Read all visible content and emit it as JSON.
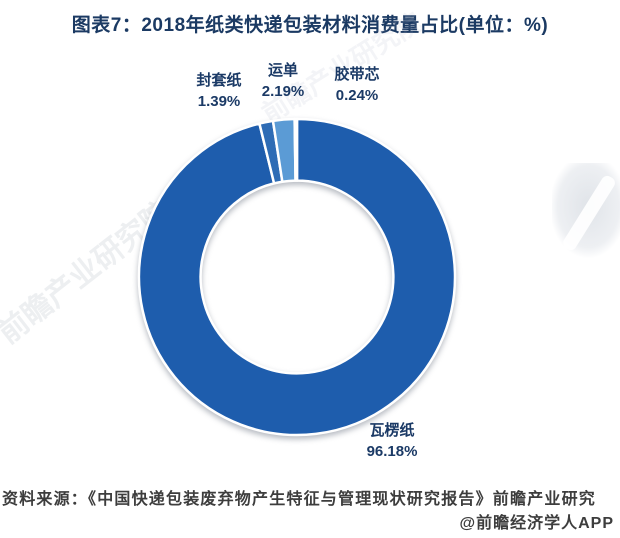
{
  "title": "图表7：2018年纸类快递包装材料消费量占比(单位：%)",
  "chart_data": {
    "type": "pie",
    "subtype": "donut",
    "title": "2018年纸类快递包装材料消费量占比",
    "unit": "%",
    "labels": [
      "瓦楞纸",
      "封套纸",
      "运单",
      "胶带芯"
    ],
    "values": [
      96.18,
      1.39,
      2.19,
      0.24
    ],
    "value_labels": [
      "96.18%",
      "1.39%",
      "2.19%",
      "0.24%"
    ],
    "colors": [
      "#1e5dad",
      "#2e6cb5",
      "#5b9bd5",
      "#8ab4de"
    ],
    "start_angle_deg": 0,
    "direction": "clockwise",
    "donut_hole_ratio": 0.61,
    "slice_gap_stroke": "#ffffff",
    "legend": "none",
    "label_style": "external-callouts"
  },
  "callouts": {
    "envelope": {
      "name": "封套纸",
      "value": "1.39%"
    },
    "waybill": {
      "name": "运单",
      "value": "2.19%"
    },
    "tape_core": {
      "name": "胶带芯",
      "value": "0.24%"
    },
    "corrugated": {
      "name": "瓦楞纸",
      "value": "96.18%"
    }
  },
  "source": {
    "line1": "资料来源：《中国快递包装废弃物产生特征与管理现状研究报告》前瞻产业研究",
    "line2": "@前瞻经济学人APP"
  },
  "watermark": {
    "text": "前瞻产业研究院"
  },
  "theme": {
    "title_color": "#1b3a63",
    "label_color": "#1b3a66",
    "source_color": "#3d3d3d",
    "background": "#ffffff"
  }
}
